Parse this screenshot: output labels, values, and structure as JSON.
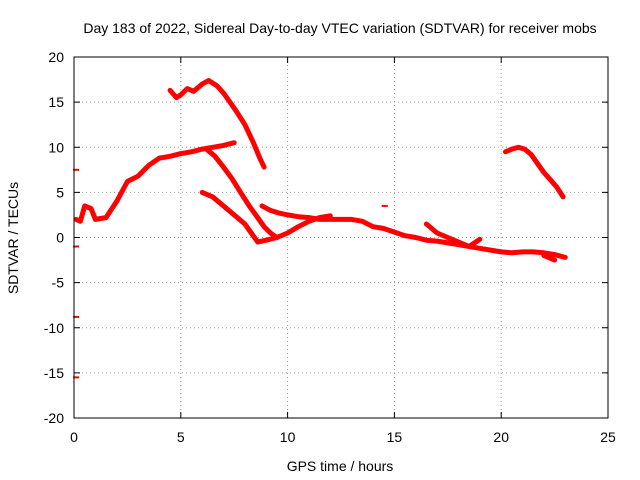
{
  "chart_data": {
    "type": "scatter",
    "title": "Day 183 of 2022, Sidereal Day-to-day VTEC variation (SDTVAR) for receiver mobs",
    "xlabel": "GPS time / hours",
    "ylabel": "SDTVAR / TECUs",
    "xlim": [
      0,
      25
    ],
    "ylim": [
      -20,
      20
    ],
    "xticks": [
      0,
      5,
      10,
      15,
      20,
      25
    ],
    "yticks": [
      -20,
      -15,
      -10,
      -5,
      0,
      5,
      10,
      15,
      20
    ],
    "xtick_labels": [
      "0",
      "5",
      "10",
      "15",
      "20",
      "25"
    ],
    "ytick_labels": [
      "-20",
      "-15",
      "-10",
      "-5",
      "0",
      "5",
      "10",
      "15",
      "20"
    ],
    "grid": true,
    "color": "#ff0000",
    "series": [
      {
        "name": "track-1",
        "points": [
          [
            0.1,
            2.0
          ],
          [
            0.3,
            1.8
          ],
          [
            0.5,
            3.5
          ],
          [
            0.8,
            3.2
          ],
          [
            1.0,
            2.0
          ],
          [
            1.5,
            2.2
          ],
          [
            2.0,
            4.0
          ],
          [
            2.5,
            6.2
          ],
          [
            3.0,
            6.8
          ],
          [
            3.5,
            8.0
          ],
          [
            4.0,
            8.8
          ],
          [
            4.5,
            9.0
          ],
          [
            5.0,
            9.3
          ],
          [
            5.5,
            9.5
          ],
          [
            6.0,
            9.8
          ],
          [
            6.5,
            10.0
          ],
          [
            7.0,
            10.2
          ],
          [
            7.5,
            10.5
          ]
        ]
      },
      {
        "name": "track-2",
        "points": [
          [
            4.5,
            16.3
          ],
          [
            4.8,
            15.5
          ],
          [
            5.0,
            15.8
          ],
          [
            5.3,
            16.5
          ],
          [
            5.6,
            16.2
          ],
          [
            6.0,
            17.0
          ],
          [
            6.3,
            17.4
          ],
          [
            6.7,
            16.8
          ],
          [
            7.0,
            16.0
          ],
          [
            7.3,
            15.0
          ],
          [
            7.6,
            14.0
          ],
          [
            8.0,
            12.5
          ],
          [
            8.4,
            10.5
          ],
          [
            8.7,
            8.8
          ],
          [
            8.9,
            7.8
          ]
        ]
      },
      {
        "name": "track-3",
        "points": [
          [
            6.2,
            9.8
          ],
          [
            6.6,
            9.0
          ],
          [
            7.0,
            7.8
          ],
          [
            7.4,
            6.5
          ],
          [
            7.8,
            5.0
          ],
          [
            8.2,
            3.5
          ],
          [
            8.6,
            2.2
          ],
          [
            8.9,
            1.2
          ],
          [
            9.2,
            0.5
          ],
          [
            9.5,
            0.0
          ]
        ]
      },
      {
        "name": "track-4",
        "points": [
          [
            6.0,
            5.0
          ],
          [
            6.5,
            4.5
          ],
          [
            7.0,
            3.5
          ],
          [
            7.5,
            2.5
          ],
          [
            8.0,
            1.5
          ],
          [
            8.3,
            0.5
          ],
          [
            8.6,
            -0.5
          ],
          [
            9.0,
            -0.3
          ],
          [
            9.5,
            0.0
          ],
          [
            10.0,
            0.5
          ],
          [
            10.5,
            1.2
          ],
          [
            11.0,
            1.8
          ],
          [
            11.5,
            2.2
          ],
          [
            12.0,
            2.4
          ]
        ]
      },
      {
        "name": "track-5",
        "points": [
          [
            8.8,
            3.5
          ],
          [
            9.2,
            3.0
          ],
          [
            9.6,
            2.7
          ],
          [
            10.0,
            2.5
          ],
          [
            10.5,
            2.3
          ],
          [
            11.0,
            2.2
          ],
          [
            11.5,
            2.0
          ],
          [
            12.0,
            2.0
          ],
          [
            12.5,
            2.0
          ],
          [
            13.0,
            2.0
          ],
          [
            13.5,
            1.8
          ],
          [
            14.0,
            1.2
          ],
          [
            14.5,
            1.0
          ],
          [
            15.0,
            0.6
          ],
          [
            15.5,
            0.2
          ],
          [
            16.0,
            0.0
          ],
          [
            16.5,
            -0.3
          ],
          [
            17.0,
            -0.4
          ],
          [
            17.5,
            -0.6
          ],
          [
            18.0,
            -0.8
          ],
          [
            18.5,
            -1.0
          ],
          [
            19.0,
            -1.2
          ],
          [
            19.5,
            -1.4
          ],
          [
            20.0,
            -1.6
          ],
          [
            20.5,
            -1.7
          ],
          [
            21.0,
            -1.6
          ],
          [
            21.5,
            -1.6
          ],
          [
            22.0,
            -1.7
          ],
          [
            22.5,
            -1.9
          ],
          [
            23.0,
            -2.2
          ]
        ]
      },
      {
        "name": "track-6",
        "points": [
          [
            20.2,
            9.5
          ],
          [
            20.5,
            9.8
          ],
          [
            20.8,
            10.0
          ],
          [
            21.1,
            9.8
          ],
          [
            21.4,
            9.2
          ],
          [
            21.7,
            8.2
          ],
          [
            22.0,
            7.2
          ],
          [
            22.3,
            6.4
          ],
          [
            22.6,
            5.6
          ],
          [
            22.9,
            4.5
          ]
        ]
      },
      {
        "name": "track-7",
        "points": [
          [
            16.5,
            1.5
          ],
          [
            17.0,
            0.5
          ],
          [
            17.5,
            0.0
          ],
          [
            18.0,
            -0.5
          ],
          [
            18.5,
            -1.0
          ],
          [
            19.0,
            -0.2
          ]
        ]
      },
      {
        "name": "track-8",
        "points": [
          [
            22.0,
            -2.0
          ],
          [
            22.5,
            -2.5
          ]
        ]
      }
    ],
    "markers": [
      [
        0.05,
        7.5
      ],
      [
        0.05,
        -1.0
      ],
      [
        0.05,
        -8.8
      ],
      [
        0.05,
        -15.5
      ],
      [
        14.5,
        3.5
      ]
    ]
  }
}
